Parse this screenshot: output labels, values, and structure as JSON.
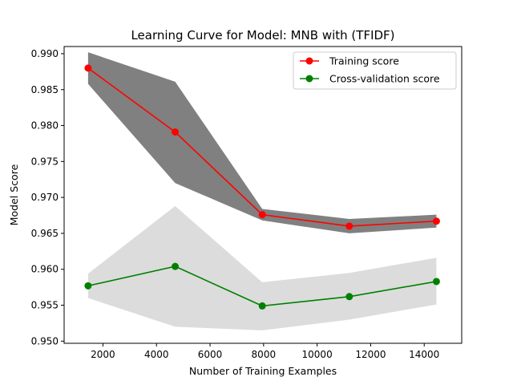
{
  "chart_data": {
    "type": "line",
    "title": "Learning Curve for Model: MNB with (TFIDF)",
    "xlabel": "Number of Training Examples",
    "ylabel": "Model Score",
    "xlim": [
      550,
      15400
    ],
    "ylim": [
      0.9497,
      0.991
    ],
    "xticks": [
      2000,
      4000,
      6000,
      8000,
      10000,
      12000,
      14000
    ],
    "xtick_labels": [
      "2000",
      "4000",
      "6000",
      "8000",
      "10000",
      "12000",
      "14000"
    ],
    "yticks": [
      0.95,
      0.955,
      0.96,
      0.965,
      0.97,
      0.975,
      0.98,
      0.985,
      0.99
    ],
    "ytick_labels": [
      "0.950",
      "0.955",
      "0.960",
      "0.965",
      "0.970",
      "0.975",
      "0.980",
      "0.985",
      "0.990"
    ],
    "grid": false,
    "legend_position": "top-right",
    "x": [
      1445,
      4698,
      7950,
      11203,
      14455
    ],
    "series": [
      {
        "name": "Training score",
        "color": "#ff0000",
        "values": [
          0.988,
          0.9791,
          0.9676,
          0.966,
          0.9667
        ],
        "band_lower": [
          0.9858,
          0.972,
          0.9668,
          0.965,
          0.9658
        ],
        "band_upper": [
          0.9902,
          0.9861,
          0.9684,
          0.967,
          0.9676
        ],
        "band_color": "#808080"
      },
      {
        "name": "Cross-validation score",
        "color": "#008000",
        "values": [
          0.9577,
          0.9604,
          0.9549,
          0.9562,
          0.9583
        ],
        "band_lower": [
          0.956,
          0.952,
          0.9515,
          0.953,
          0.9551
        ],
        "band_upper": [
          0.9594,
          0.9688,
          0.9582,
          0.9595,
          0.9616
        ],
        "band_color": "#dcdcdc"
      }
    ]
  }
}
